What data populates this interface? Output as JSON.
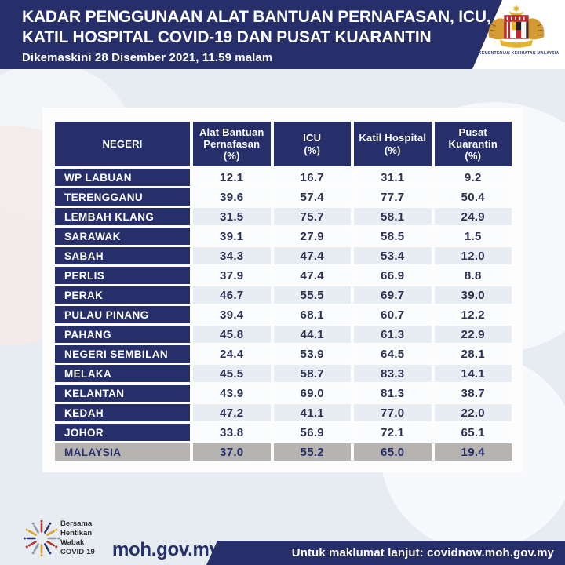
{
  "header": {
    "title_line1": "KADAR PENGGUNAAN ALAT BANTUAN PERNAFASAN, ICU,",
    "title_line2": "KATIL HOSPITAL COVID-19 DAN PUSAT KUARANTIN",
    "updated": "Dikemaskini 28 Disember 2021, 11.59 malam",
    "ministry_caption": "KEMENTERIAN KESIHATAN MALAYSIA"
  },
  "table": {
    "columns": [
      {
        "label_lines": [
          "NEGERI"
        ]
      },
      {
        "label_lines": [
          "Alat Bantuan",
          "Pernafasan",
          "(%)"
        ]
      },
      {
        "label_lines": [
          "ICU",
          "(%)"
        ]
      },
      {
        "label_lines": [
          "Katil Hospital",
          "(%)"
        ]
      },
      {
        "label_lines": [
          "Pusat",
          "Kuarantin",
          "(%)"
        ]
      }
    ],
    "rows": [
      {
        "state": "WP LABUAN",
        "values": [
          "12.1",
          "16.7",
          "31.1",
          "9.2"
        ]
      },
      {
        "state": "TERENGGANU",
        "values": [
          "39.6",
          "57.4",
          "77.7",
          "50.4"
        ]
      },
      {
        "state": "LEMBAH KLANG",
        "values": [
          "31.5",
          "75.7",
          "58.1",
          "24.9"
        ]
      },
      {
        "state": "SARAWAK",
        "values": [
          "39.1",
          "27.9",
          "58.5",
          "1.5"
        ]
      },
      {
        "state": "SABAH",
        "values": [
          "34.3",
          "47.4",
          "53.4",
          "12.0"
        ]
      },
      {
        "state": "PERLIS",
        "values": [
          "37.9",
          "47.4",
          "66.9",
          "8.8"
        ]
      },
      {
        "state": "PERAK",
        "values": [
          "46.7",
          "55.5",
          "69.7",
          "39.0"
        ]
      },
      {
        "state": "PULAU PINANG",
        "values": [
          "39.4",
          "68.1",
          "60.7",
          "12.2"
        ]
      },
      {
        "state": "PAHANG",
        "values": [
          "45.8",
          "44.1",
          "61.3",
          "22.9"
        ]
      },
      {
        "state": "NEGERI SEMBILAN",
        "values": [
          "24.4",
          "53.9",
          "64.5",
          "28.1"
        ]
      },
      {
        "state": "MELAKA",
        "values": [
          "45.5",
          "58.7",
          "83.3",
          "14.1"
        ]
      },
      {
        "state": "KELANTAN",
        "values": [
          "43.9",
          "69.0",
          "81.3",
          "38.7"
        ]
      },
      {
        "state": "KEDAH",
        "values": [
          "47.2",
          "41.1",
          "77.0",
          "22.0"
        ]
      },
      {
        "state": "JOHOR",
        "values": [
          "33.8",
          "56.9",
          "72.1",
          "65.1"
        ]
      }
    ],
    "total_row": {
      "state": "MALAYSIA",
      "values": [
        "37.0",
        "55.2",
        "65.0",
        "19.4"
      ]
    }
  },
  "footer": {
    "campaign_lines": [
      "Bersama",
      "Hentikan",
      "Wabak",
      "COVID-19"
    ],
    "website": "moh.gov.my",
    "info_banner": "Untuk maklumat lanjut: covidnow.moh.gov.my"
  },
  "colors": {
    "navy": "#262f6a",
    "row_plain": "#fbfcfd",
    "row_shaded": "#e8edf4",
    "total_gray": "#b7b3b1",
    "background": "#e7ecf2"
  },
  "chart_data": {
    "type": "table",
    "title": "KADAR PENGGUNAAN ALAT BANTUAN PERNAFASAN, ICU, KATIL HOSPITAL COVID-19 DAN PUSAT KUARANTIN",
    "updated": "Dikemaskini 28 Disember 2021, 11.59 malam",
    "columns": [
      "NEGERI",
      "Alat Bantuan Pernafasan (%)",
      "ICU (%)",
      "Katil Hospital (%)",
      "Pusat Kuarantin (%)"
    ],
    "rows": [
      [
        "WP LABUAN",
        12.1,
        16.7,
        31.1,
        9.2
      ],
      [
        "TERENGGANU",
        39.6,
        57.4,
        77.7,
        50.4
      ],
      [
        "LEMBAH KLANG",
        31.5,
        75.7,
        58.1,
        24.9
      ],
      [
        "SARAWAK",
        39.1,
        27.9,
        58.5,
        1.5
      ],
      [
        "SABAH",
        34.3,
        47.4,
        53.4,
        12.0
      ],
      [
        "PERLIS",
        37.9,
        47.4,
        66.9,
        8.8
      ],
      [
        "PERAK",
        46.7,
        55.5,
        69.7,
        39.0
      ],
      [
        "PULAU PINANG",
        39.4,
        68.1,
        60.7,
        12.2
      ],
      [
        "PAHANG",
        45.8,
        44.1,
        61.3,
        22.9
      ],
      [
        "NEGERI SEMBILAN",
        24.4,
        53.9,
        64.5,
        28.1
      ],
      [
        "MELAKA",
        45.5,
        58.7,
        83.3,
        14.1
      ],
      [
        "KELANTAN",
        43.9,
        69.0,
        81.3,
        38.7
      ],
      [
        "KEDAH",
        47.2,
        41.1,
        77.0,
        22.0
      ],
      [
        "JOHOR",
        33.8,
        56.9,
        72.1,
        65.1
      ],
      [
        "MALAYSIA",
        37.0,
        55.2,
        65.0,
        19.4
      ]
    ]
  }
}
